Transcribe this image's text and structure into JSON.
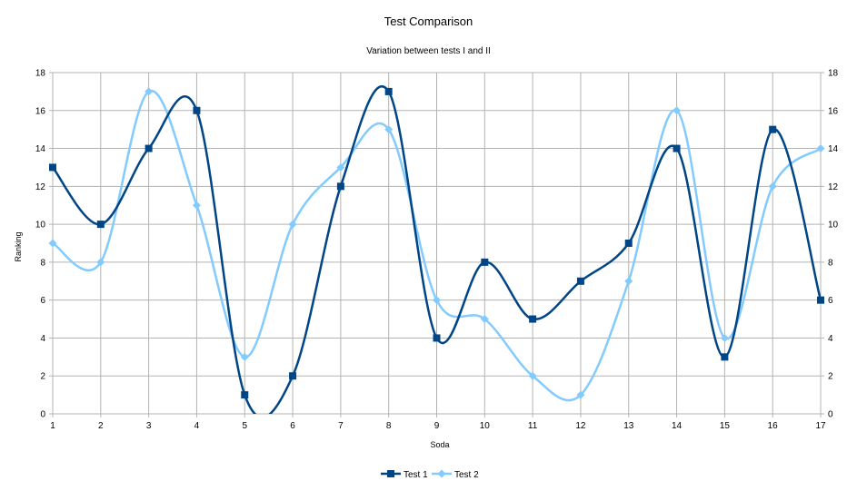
{
  "chart_data": {
    "type": "line",
    "title": "Test Comparison",
    "subtitle": "Variation between tests I and II",
    "xlabel": "Soda",
    "ylabel": "Ranking",
    "x": [
      1,
      2,
      3,
      4,
      5,
      6,
      7,
      8,
      9,
      10,
      11,
      12,
      13,
      14,
      15,
      16,
      17
    ],
    "x_tick_labels": [
      "1",
      "2",
      "3",
      "4",
      "5",
      "6",
      "7",
      "8",
      "9",
      "10",
      "11",
      "12",
      "13",
      "14",
      "15",
      "16",
      "17"
    ],
    "y_tick_labels": [
      "0",
      "2",
      "4",
      "6",
      "8",
      "10",
      "12",
      "14",
      "16",
      "18"
    ],
    "ylim": [
      0,
      18
    ],
    "grid": true,
    "secondary_y_axis": true,
    "smooth": true,
    "legend_position": "bottom",
    "series": [
      {
        "name": "Test 1",
        "color": "#004586",
        "marker": "square",
        "values": [
          13,
          10,
          14,
          16,
          1,
          2,
          12,
          17,
          4,
          8,
          5,
          7,
          9,
          14,
          3,
          15,
          6
        ]
      },
      {
        "name": "Test 2",
        "color": "#83caff",
        "marker": "diamond",
        "values": [
          9,
          8,
          17,
          11,
          3,
          10,
          13,
          15,
          6,
          5,
          2,
          1,
          7,
          16,
          4,
          12,
          14
        ]
      }
    ]
  }
}
